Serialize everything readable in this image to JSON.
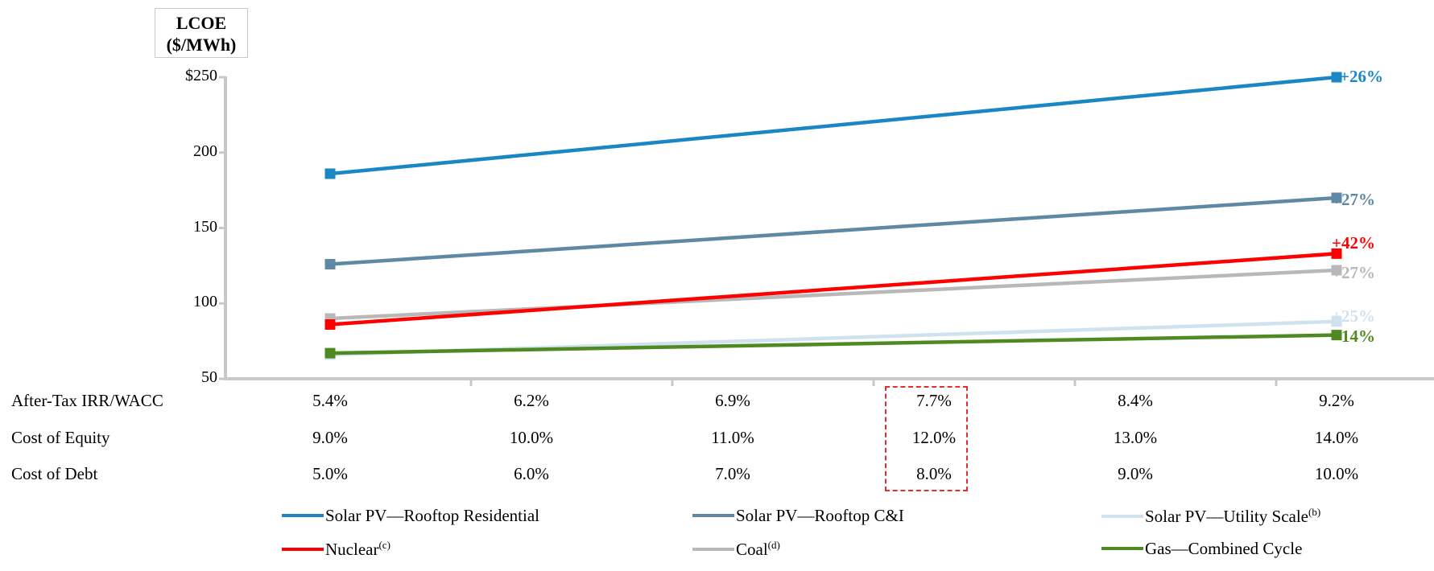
{
  "chart_data": {
    "type": "line",
    "ylabel_line1": "LCOE",
    "ylabel_line2": "($/MWh)",
    "yticks": [
      "$250",
      "200",
      "150",
      "100",
      "50"
    ],
    "ytick_values": [
      250,
      200,
      150,
      100,
      50
    ],
    "ylim": [
      50,
      250
    ],
    "table_rows": [
      {
        "label": "After-Tax IRR/WACC",
        "values": [
          "5.4%",
          "6.2%",
          "6.9%",
          "7.7%",
          "8.4%",
          "9.2%"
        ]
      },
      {
        "label": "Cost of Equity",
        "values": [
          "9.0%",
          "10.0%",
          "11.0%",
          "12.0%",
          "13.0%",
          "14.0%"
        ]
      },
      {
        "label": "Cost of Debt",
        "values": [
          "5.0%",
          "6.0%",
          "7.0%",
          "8.0%",
          "9.0%",
          "10.0%"
        ]
      }
    ],
    "highlighted_column": "7.7%",
    "series": [
      {
        "name": "Solar PV—Rooftop Residential",
        "sup": "",
        "color": "#1a87c4",
        "start": 186,
        "end": 250,
        "change": "+26%"
      },
      {
        "name": "Solar PV—Rooftop C&I",
        "sup": "",
        "color": "#5f88a5",
        "start": 126,
        "end": 170,
        "change": "+27%"
      },
      {
        "name": "Solar PV—Utility Scale",
        "sup": "(b)",
        "color": "#cfe2ee",
        "start": 66,
        "end": 88,
        "change": "+25%"
      },
      {
        "name": "Nuclear",
        "sup": "(c)",
        "color": "#ff0000",
        "start": 86,
        "end": 133,
        "change": "+42%"
      },
      {
        "name": "Coal",
        "sup": "(d)",
        "color": "#b8b8b8",
        "start": 90,
        "end": 122,
        "change": "+27%"
      },
      {
        "name": "Gas—Combined Cycle",
        "sup": "",
        "color": "#4e8a21",
        "start": 67,
        "end": 79,
        "change": "+14%"
      }
    ]
  }
}
